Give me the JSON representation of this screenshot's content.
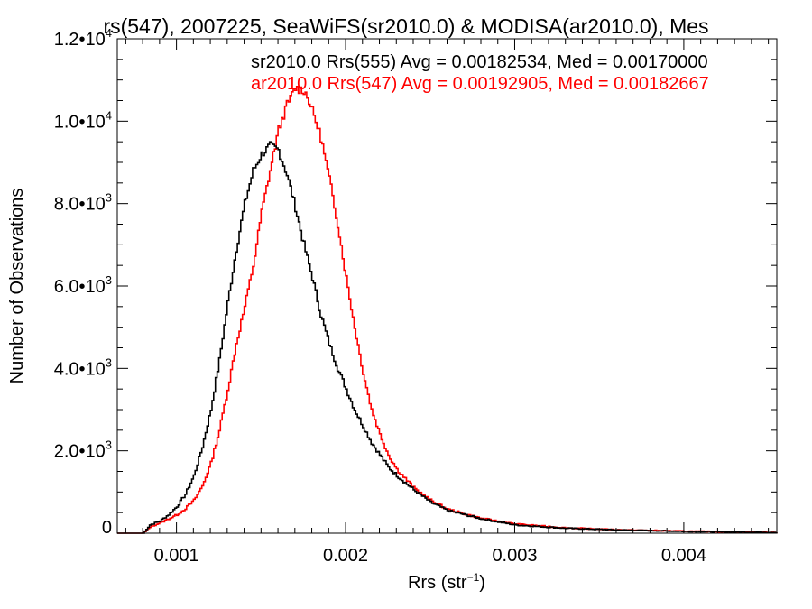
{
  "chart_data": {
    "type": "line",
    "title": "rs(547), 2007225, SeaWiFS(sr2010.0) & MODISA(ar2010.0), Mes",
    "xlabel": {
      "text": "Rrs (str",
      "sup": "−1",
      "close": ")"
    },
    "ylabel": "Number of Observations",
    "xlim": [
      0.00065,
      0.00455
    ],
    "ylim": [
      0,
      12000
    ],
    "x_ticks": [
      {
        "value": 0.001,
        "label": "0.001"
      },
      {
        "value": 0.002,
        "label": "0.002"
      },
      {
        "value": 0.003,
        "label": "0.003"
      },
      {
        "value": 0.004,
        "label": "0.004"
      }
    ],
    "y_ticks": [
      {
        "value": 0,
        "mant": "0",
        "exp": ""
      },
      {
        "value": 2000,
        "mant": "2.0•10",
        "exp": "3"
      },
      {
        "value": 4000,
        "mant": "4.0•10",
        "exp": "3"
      },
      {
        "value": 6000,
        "mant": "6.0•10",
        "exp": "3"
      },
      {
        "value": 8000,
        "mant": "8.0•10",
        "exp": "3"
      },
      {
        "value": 10000,
        "mant": "1.0•10",
        "exp": "4"
      },
      {
        "value": 12000,
        "mant": "1.2•10",
        "exp": "4"
      }
    ],
    "legend_placement": "top-right",
    "series": [
      {
        "name": "sr2010.0 Rrs(555) Avg = 0.00182534, Med = 0.00170000",
        "color": "#000000",
        "x": [
          0.0008,
          0.00084,
          0.0009,
          0.00095,
          0.001,
          0.00105,
          0.0011,
          0.00115,
          0.0012,
          0.00125,
          0.0013,
          0.00135,
          0.0014,
          0.00145,
          0.0015,
          0.00155,
          0.0016,
          0.00165,
          0.0017,
          0.00175,
          0.0018,
          0.00185,
          0.0019,
          0.00195,
          0.002,
          0.00205,
          0.0021,
          0.00215,
          0.0022,
          0.00225,
          0.0023,
          0.0024,
          0.0025,
          0.0026,
          0.0028,
          0.003,
          0.0033,
          0.0036,
          0.004,
          0.0043,
          0.00455
        ],
        "y": [
          0,
          200,
          300,
          450,
          650,
          950,
          1400,
          2100,
          3000,
          4200,
          5600,
          6900,
          8000,
          8800,
          9200,
          9400,
          9300,
          8700,
          7900,
          7000,
          6200,
          5300,
          4600,
          4000,
          3500,
          3000,
          2600,
          2200,
          1900,
          1600,
          1400,
          1050,
          750,
          550,
          350,
          200,
          120,
          80,
          45,
          30,
          20
        ]
      },
      {
        "name": "ar2010.0 Rrs(547) Avg = 0.00192905, Med = 0.00182667",
        "color": "#ff0000",
        "x": [
          0.0008,
          0.00084,
          0.0009,
          0.00095,
          0.001,
          0.00105,
          0.0011,
          0.00115,
          0.0012,
          0.00125,
          0.0013,
          0.00135,
          0.0014,
          0.00145,
          0.0015,
          0.00155,
          0.0016,
          0.00165,
          0.0017,
          0.00175,
          0.00178,
          0.00182,
          0.00185,
          0.0019,
          0.00195,
          0.002,
          0.00205,
          0.0021,
          0.00215,
          0.0022,
          0.00225,
          0.0023,
          0.0024,
          0.0025,
          0.0026,
          0.0028,
          0.003,
          0.0033,
          0.0036,
          0.004,
          0.0043,
          0.00455
        ],
        "y": [
          0,
          150,
          250,
          350,
          450,
          600,
          800,
          1150,
          1700,
          2500,
          3500,
          4600,
          5500,
          6500,
          7800,
          8800,
          9800,
          10400,
          10800,
          10750,
          10500,
          10000,
          9600,
          8600,
          7500,
          6200,
          5000,
          3900,
          3000,
          2400,
          1900,
          1550,
          1100,
          800,
          580,
          360,
          220,
          130,
          85,
          50,
          32,
          20
        ]
      }
    ]
  }
}
